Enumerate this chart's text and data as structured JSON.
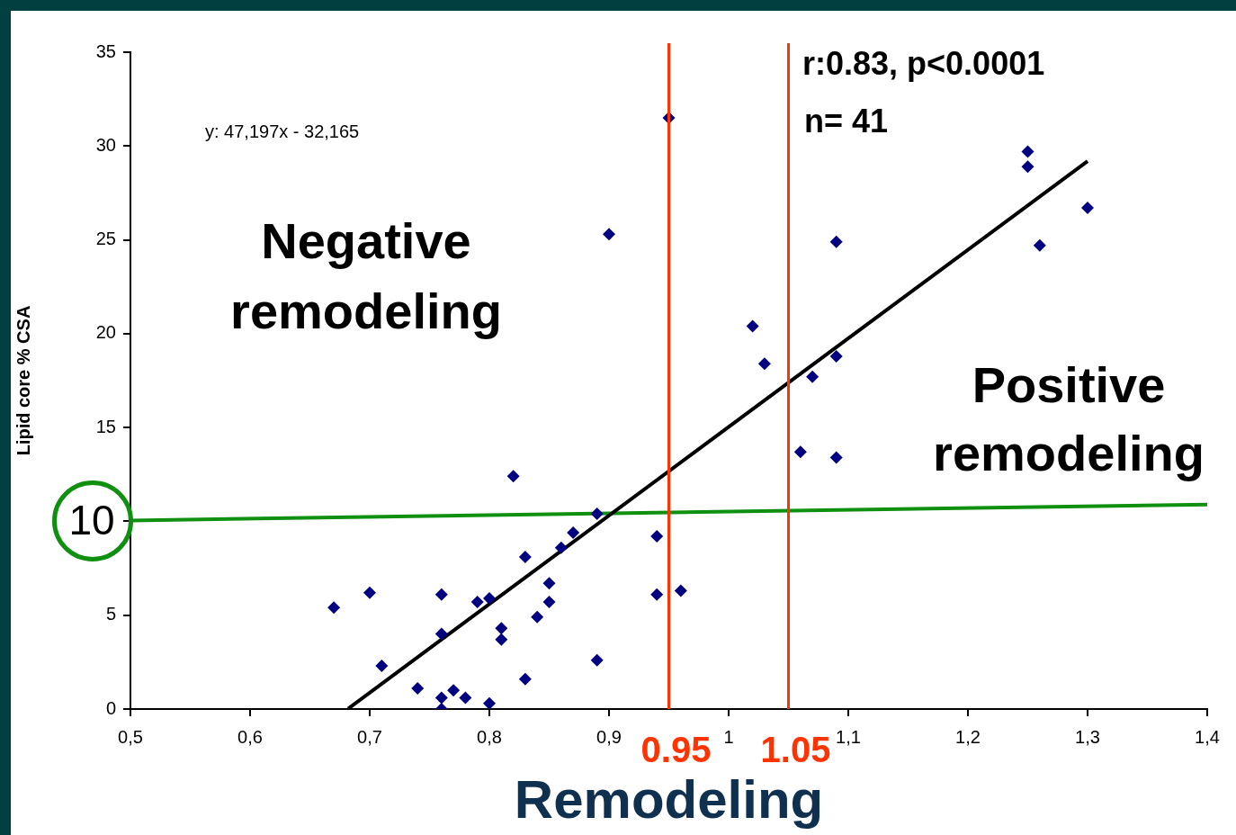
{
  "chart_data": {
    "type": "scatter",
    "xlabel": "Remodeling",
    "ylabel": "Lipid core % CSA",
    "xlim": [
      0.5,
      1.4
    ],
    "ylim": [
      0,
      35
    ],
    "xticks": [
      {
        "value": 0.5,
        "label": "0,5"
      },
      {
        "value": 0.6,
        "label": "0,6"
      },
      {
        "value": 0.7,
        "label": "0,7"
      },
      {
        "value": 0.8,
        "label": "0,8"
      },
      {
        "value": 0.9,
        "label": "0,9"
      },
      {
        "value": 1,
        "label": "1"
      },
      {
        "value": 1.1,
        "label": "1,1"
      },
      {
        "value": 1.2,
        "label": "1,2"
      },
      {
        "value": 1.3,
        "label": "1,3"
      },
      {
        "value": 1.4,
        "label": "1,4"
      }
    ],
    "yticks": [
      0,
      5,
      {
        "value": 10,
        "label": null
      },
      15,
      20,
      25,
      30,
      35
    ],
    "grid": false,
    "legend": false,
    "marker": "diamond",
    "series": [
      {
        "type": "scatter",
        "color": "#000080",
        "x": [
          0.67,
          0.7,
          0.71,
          0.74,
          0.76,
          0.76,
          0.76,
          0.76,
          0.77,
          0.78,
          0.79,
          0.8,
          0.8,
          0.81,
          0.81,
          0.82,
          0.83,
          0.83,
          0.84,
          0.85,
          0.85,
          0.86,
          0.87,
          0.89,
          0.89,
          0.9,
          0.94,
          0.94,
          0.95,
          0.96,
          1.02,
          1.03,
          1.06,
          1.07,
          1.09,
          1.09,
          1.09,
          1.25,
          1.25,
          1.26,
          1.3
        ],
        "values": [
          5.4,
          6.2,
          2.3,
          1.1,
          6.1,
          4.0,
          0.6,
          0.0,
          1.0,
          0.6,
          5.7,
          5.9,
          0.3,
          4.3,
          3.7,
          12.4,
          8.1,
          1.6,
          4.9,
          6.7,
          5.7,
          8.6,
          9.4,
          10.4,
          2.6,
          25.3,
          9.2,
          6.1,
          31.5,
          6.3,
          20.4,
          18.4,
          13.7,
          17.7,
          24.9,
          18.8,
          13.4,
          29.7,
          28.9,
          24.7,
          26.7
        ]
      },
      {
        "type": "line",
        "color": "#000000",
        "marker": "none",
        "x": [
          0.682,
          1.3
        ],
        "values": [
          0.02,
          29.19
        ]
      },
      {
        "type": "line",
        "color": "#109010",
        "marker": "none",
        "x": [
          0.5,
          1.4
        ],
        "values": [
          10.05,
          10.9
        ]
      }
    ],
    "ref_lines": [
      {
        "axis": "x",
        "value": 0.95,
        "label": "0.95",
        "color": "#ff3300"
      },
      {
        "axis": "x",
        "value": 1.05,
        "label": "1.05",
        "color": "#ff3300"
      }
    ],
    "annotations": [
      "y: 47,197x - 32,165",
      "Negative remodeling",
      "r:0.83, p<0.0001",
      "n= 41",
      "Positive remodeling",
      {
        "text": "10",
        "x": 0.5,
        "y": 10
      }
    ]
  }
}
